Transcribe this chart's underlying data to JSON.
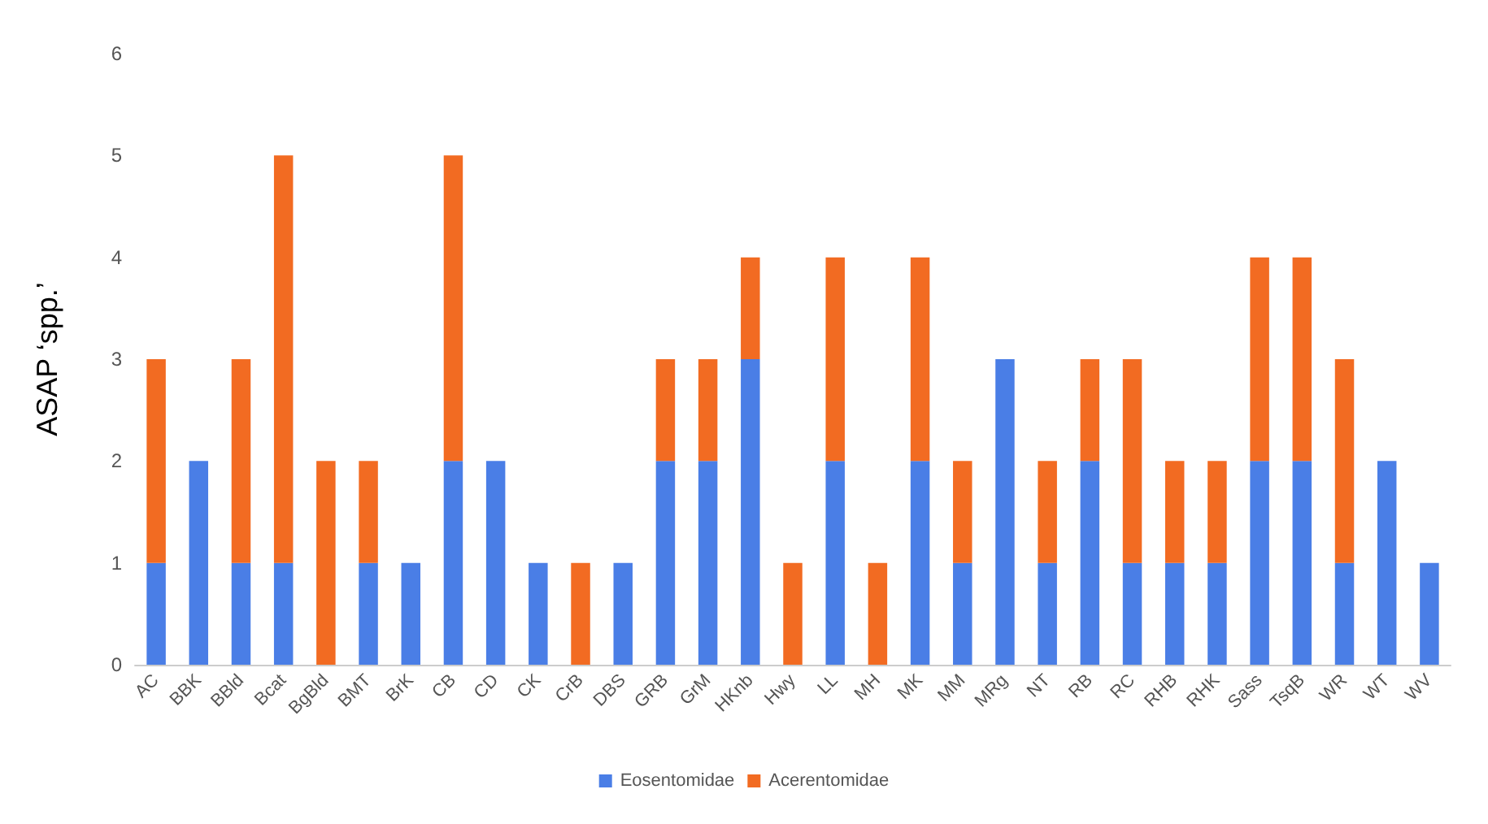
{
  "chart_data": {
    "type": "bar",
    "ylabel": "ASAP ‘spp.’",
    "stacked": true,
    "categories": [
      "AC",
      "BBK",
      "BBld",
      "Bcat",
      "BgBld",
      "BMT",
      "BrK",
      "CB",
      "CD",
      "CK",
      "CrB",
      "DBS",
      "GRB",
      "GrM",
      "HKnb",
      "Hwy",
      "LL",
      "MH",
      "MK",
      "MM",
      "MRg",
      "NT",
      "RB",
      "RC",
      "RHB",
      "RHK",
      "Sass",
      "TsqB",
      "WR",
      "WT",
      "WV"
    ],
    "series": [
      {
        "name": "Eosentomidae",
        "color": "#4a7ee6",
        "values": [
          1,
          2,
          1,
          1,
          0,
          1,
          1,
          2,
          2,
          1,
          0,
          1,
          2,
          2,
          3,
          0,
          2,
          0,
          2,
          1,
          3,
          1,
          2,
          1,
          1,
          1,
          2,
          2,
          1,
          2,
          1
        ]
      },
      {
        "name": "Acerentomidae",
        "color": "#f26b22",
        "values": [
          2,
          0,
          2,
          4,
          2,
          1,
          0,
          3,
          0,
          0,
          1,
          0,
          1,
          1,
          1,
          1,
          2,
          1,
          2,
          1,
          0,
          1,
          1,
          2,
          1,
          1,
          2,
          2,
          2,
          0,
          0
        ]
      }
    ],
    "ylim": [
      0,
      6
    ],
    "yticks": [
      0,
      1,
      2,
      3,
      4,
      5,
      6
    ],
    "grid": false,
    "legend": "bottom"
  }
}
